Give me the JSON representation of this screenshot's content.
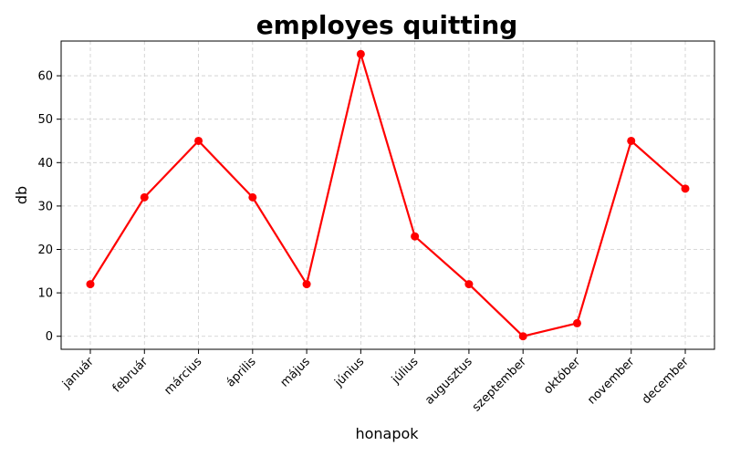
{
  "chart_data": {
    "type": "line",
    "title": "employes quitting",
    "xlabel": "honapok",
    "ylabel": "db",
    "categories": [
      "január",
      "február",
      "március",
      "április",
      "május",
      "június",
      "július",
      "augusztus",
      "szeptember",
      "október",
      "november",
      "december"
    ],
    "series": [
      {
        "values": [
          12,
          32,
          45,
          32,
          12,
          65,
          23,
          12,
          0,
          3,
          45,
          34
        ]
      }
    ],
    "ylim": [
      -3,
      68
    ],
    "yticks": [
      0,
      10,
      20,
      30,
      40,
      50,
      60
    ],
    "grid": true,
    "line_color": "#ff0000",
    "marker": "circle"
  }
}
